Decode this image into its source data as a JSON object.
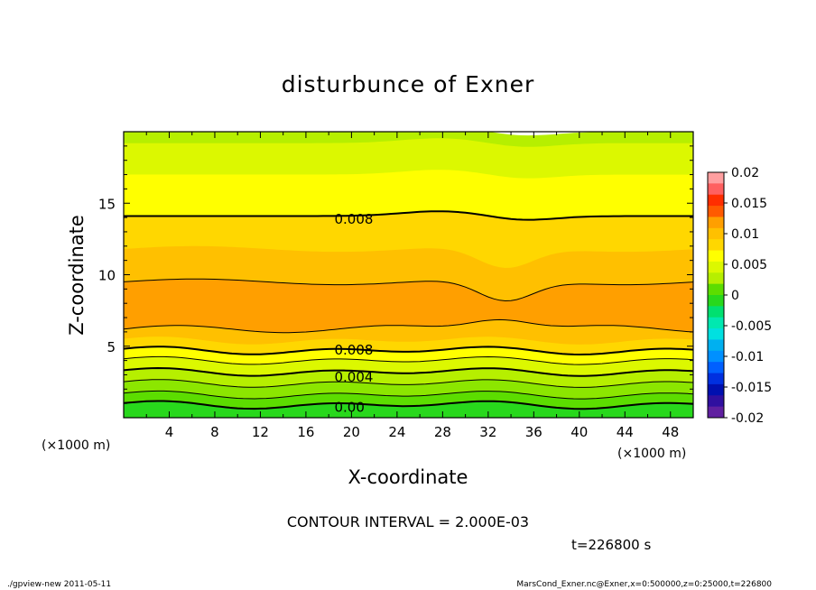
{
  "chart_data": {
    "type": "contour",
    "title": "disturbunce of Exner",
    "xlabel": "X-coordinate",
    "ylabel": "Z-coordinate",
    "x_unit": "(×1000 m)",
    "y_unit": "(×1000 m)",
    "xlim": [
      0,
      50
    ],
    "ylim": [
      0,
      20
    ],
    "x_ticks": [
      4,
      8,
      12,
      16,
      20,
      24,
      28,
      32,
      36,
      40,
      44,
      48
    ],
    "y_ticks": [
      5,
      10,
      15
    ],
    "contour_interval_text": "CONTOUR INTERVAL = 2.000E-03",
    "time_text": "t=226800 s",
    "colorbar": {
      "ticks": [
        "0.02",
        "0.015",
        "0.01",
        "0.005",
        "0",
        "-0.005",
        "-0.01",
        "-0.015",
        "-0.02"
      ],
      "min": -0.02,
      "max": 0.02
    },
    "contour_labels": [
      {
        "text": "0.008",
        "x": 18.5,
        "z": 13.95
      },
      {
        "text": "0.008",
        "x": 18.5,
        "z": 4.8
      },
      {
        "text": "0.004",
        "x": 18.5,
        "z": 2.9
      },
      {
        "text": "0.00",
        "x": 18.5,
        "z": 0.8
      }
    ],
    "bands": [
      {
        "color": "#b6ef00",
        "top_z": 20.0
      },
      {
        "color": "#dcf800",
        "top_z": 19.2
      },
      {
        "color": "#ffff00",
        "top_z": 17.0
      },
      {
        "color": "#ffd700",
        "top_z": 14.1
      },
      {
        "color": "#ffc000",
        "top_z": 11.8
      },
      {
        "color": "#ff9f00",
        "top_z": 9.5
      },
      {
        "color": "#ffc000",
        "top_z": 6.2
      },
      {
        "color": "#ffd700",
        "top_z": 5.4
      },
      {
        "color": "#ffff00",
        "top_z": 4.7
      },
      {
        "color": "#dcf800",
        "top_z": 4.0
      },
      {
        "color": "#b6ef00",
        "top_z": 3.2
      },
      {
        "color": "#8ce600",
        "top_z": 2.4
      },
      {
        "color": "#5cdd00",
        "top_z": 1.6
      },
      {
        "color": "#28d81c",
        "top_z": 0.9
      }
    ],
    "contours": [
      {
        "z": 14.1,
        "bold": true
      },
      {
        "z": 9.5,
        "bold": false
      },
      {
        "z": 6.2,
        "bold": false
      },
      {
        "z": 4.7,
        "bold": true
      },
      {
        "z": 4.0,
        "bold": false
      },
      {
        "z": 3.2,
        "bold": true
      },
      {
        "z": 2.4,
        "bold": false
      },
      {
        "z": 1.6,
        "bold": false
      },
      {
        "z": 0.9,
        "bold": true
      }
    ]
  },
  "footer": {
    "left": "./gpview-new   2011-05-11",
    "right": "MarsCond_Exner.nc@Exner,x=0:500000,z=0:25000,t=226800"
  }
}
